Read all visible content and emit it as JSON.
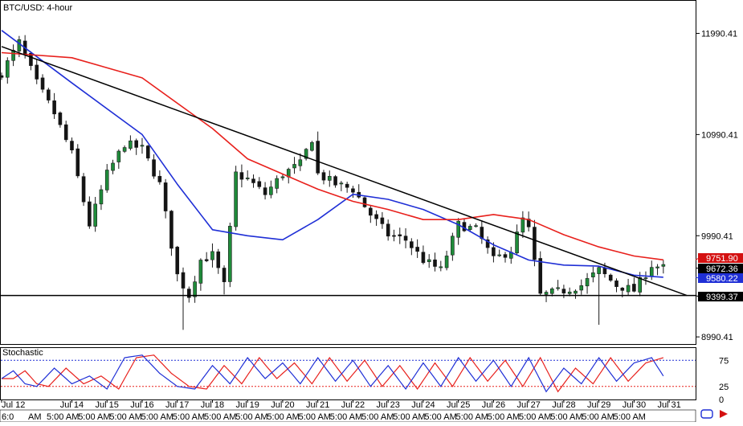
{
  "title": "BTC/USD: 4-hour",
  "colors": {
    "up": "#1f8b3a",
    "down": "#141414",
    "ma_fast": "#1f2fd6",
    "ma_slow": "#e8201c",
    "trendline": "#000000",
    "support": "#000000",
    "stoch_k": "#1f2fd6",
    "stoch_d": "#e8201c",
    "price_tag_red": "#d41010",
    "price_tag_blue": "#1f2fd6",
    "price_tag_black": "#000000"
  },
  "stochastic": {
    "title": "Stochastic",
    "levels": [
      "75",
      "25",
      "0"
    ]
  },
  "bottom_times": [
    "6:0",
    "AM",
    "5:00 AM",
    "5:00 AM",
    "5:00 AM",
    "5:00 AM",
    "5:00 AM",
    "5:00 AM",
    "5:00 AM",
    "5:00 AM",
    "5:00 AM",
    "5:00 AM",
    "5:00 AM",
    "5:00 AM",
    "5:00 AM",
    "5:00 AM",
    "5:00 AM",
    "5:00 AM",
    "5:00 AM",
    "5:00 AM",
    "5:00 AM"
  ],
  "chart_data": {
    "type": "candlestick",
    "title": "BTC/USD: 4-hour",
    "x_labels": [
      "Jul 12",
      "Jul 14",
      "Jul 15",
      "Jul 16",
      "Jul 17",
      "Jul 18",
      "Jul 19",
      "Jul 20",
      "Jul 21",
      "Jul 22",
      "Jul 23",
      "Jul 24",
      "Jul 25",
      "Jul 26",
      "Jul 27",
      "Jul 28",
      "Jul 29",
      "Jul 30",
      "Jul 31"
    ],
    "y_ticks": [
      "11990.41",
      "10990.41",
      "9990.41",
      "8990.41"
    ],
    "ylim": [
      8920,
      12320
    ],
    "close_keypoints": [
      {
        "t": "Jul 12",
        "v": 11600
      },
      {
        "t": "Jul 12 12:00",
        "v": 11900
      },
      {
        "t": "Jul 13",
        "v": 11500
      },
      {
        "t": "Jul 13 12:00",
        "v": 11200
      },
      {
        "t": "Jul 14",
        "v": 10800
      },
      {
        "t": "Jul 14 12:00",
        "v": 10100
      },
      {
        "t": "Jul 15",
        "v": 10600
      },
      {
        "t": "Jul 15 12:00",
        "v": 10900
      },
      {
        "t": "Jul 16",
        "v": 10850
      },
      {
        "t": "Jul 16 12:00",
        "v": 10500
      },
      {
        "t": "Jul 17",
        "v": 9600
      },
      {
        "t": "Jul 17 08:00",
        "v": 9400
      },
      {
        "t": "Jul 17 16:00",
        "v": 9750
      },
      {
        "t": "Jul 18",
        "v": 9800
      },
      {
        "t": "Jul 18 08:00",
        "v": 9500
      },
      {
        "t": "Jul 18 16:00",
        "v": 10600
      },
      {
        "t": "Jul 19",
        "v": 10550
      },
      {
        "t": "Jul 19 12:00",
        "v": 10400
      },
      {
        "t": "Jul 20",
        "v": 10600
      },
      {
        "t": "Jul 20 12:00",
        "v": 10700
      },
      {
        "t": "Jul 20 20:00",
        "v": 10950
      },
      {
        "t": "Jul 21",
        "v": 10600
      },
      {
        "t": "Jul 21 12:00",
        "v": 10500
      },
      {
        "t": "Jul 22",
        "v": 10450
      },
      {
        "t": "Jul 22 12:00",
        "v": 10200
      },
      {
        "t": "Jul 23",
        "v": 10000
      },
      {
        "t": "Jul 23 12:00",
        "v": 9950
      },
      {
        "t": "Jul 24",
        "v": 9750
      },
      {
        "t": "Jul 24 12:00",
        "v": 9650
      },
      {
        "t": "Jul 25",
        "v": 10100
      },
      {
        "t": "Jul 25 12:00",
        "v": 10050
      },
      {
        "t": "Jul 26",
        "v": 9750
      },
      {
        "t": "Jul 26 12:00",
        "v": 9850
      },
      {
        "t": "Jul 26 20:00",
        "v": 10150
      },
      {
        "t": "Jul 27",
        "v": 10050
      },
      {
        "t": "Jul 27 08:00",
        "v": 9400
      },
      {
        "t": "Jul 28",
        "v": 9450
      },
      {
        "t": "Jul 28 12:00",
        "v": 9500
      },
      {
        "t": "Jul 29",
        "v": 9650
      },
      {
        "t": "Jul 29 12:00",
        "v": 9500
      },
      {
        "t": "Jul 30",
        "v": 9450
      },
      {
        "t": "Jul 30 12:00",
        "v": 9700
      },
      {
        "t": "Jul 30 20:00",
        "v": 9672.36
      }
    ],
    "wick_extremes": [
      {
        "t": "Jul 17 04:00",
        "low": 9060
      },
      {
        "t": "Jul 18 08:00",
        "low": 9410
      },
      {
        "t": "Jul 21",
        "high": 11020
      },
      {
        "t": "Jul 29",
        "low": 9110
      }
    ],
    "series": [
      {
        "name": "",
        "type": "moving_average",
        "points": [
          {
            "t": "Jul 12",
            "v": 12020
          },
          {
            "t": "Jul 14",
            "v": 11500
          },
          {
            "t": "Jul 16",
            "v": 10990
          },
          {
            "t": "Jul 17",
            "v": 10500
          },
          {
            "t": "Jul 18",
            "v": 10050
          },
          {
            "t": "Jul 19",
            "v": 9990
          },
          {
            "t": "Jul 20",
            "v": 9950
          },
          {
            "t": "Jul 21",
            "v": 10150
          },
          {
            "t": "Jul 22",
            "v": 10400
          },
          {
            "t": "Jul 23",
            "v": 10350
          },
          {
            "t": "Jul 24",
            "v": 10250
          },
          {
            "t": "Jul 25",
            "v": 10100
          },
          {
            "t": "Jul 26",
            "v": 9900
          },
          {
            "t": "Jul 27",
            "v": 9750
          },
          {
            "t": "Jul 28",
            "v": 9700
          },
          {
            "t": "Jul 29",
            "v": 9690
          },
          {
            "t": "Jul 30",
            "v": 9600
          },
          {
            "t": "Jul 30 20:00",
            "v": 9580.22
          }
        ]
      },
      {
        "name": "",
        "type": "moving_average",
        "points": [
          {
            "t": "Jul 12",
            "v": 11800
          },
          {
            "t": "Jul 14",
            "v": 11750
          },
          {
            "t": "Jul 16",
            "v": 11550
          },
          {
            "t": "Jul 18",
            "v": 11050
          },
          {
            "t": "Jul 19",
            "v": 10750
          },
          {
            "t": "Jul 20",
            "v": 10600
          },
          {
            "t": "Jul 21",
            "v": 10450
          },
          {
            "t": "Jul 22",
            "v": 10330
          },
          {
            "t": "Jul 23",
            "v": 10250
          },
          {
            "t": "Jul 24",
            "v": 10150
          },
          {
            "t": "Jul 25",
            "v": 10150
          },
          {
            "t": "Jul 26",
            "v": 10200
          },
          {
            "t": "Jul 27",
            "v": 10150
          },
          {
            "t": "Jul 28",
            "v": 10000
          },
          {
            "t": "Jul 29",
            "v": 9880
          },
          {
            "t": "Jul 30",
            "v": 9790
          },
          {
            "t": "Jul 30 20:00",
            "v": 9751.9
          }
        ]
      }
    ],
    "annotations": [
      {
        "type": "trendline",
        "from": {
          "t": "Jul 12",
          "v": 11860
        },
        "to": {
          "t": "Jul 31 12:00",
          "v": 9400
        }
      },
      {
        "type": "horizontal_line",
        "v": 9399.37
      }
    ],
    "price_labels": [
      {
        "text": "9751.90",
        "value": 9751.9,
        "color": "red"
      },
      {
        "text": "9672.36",
        "value": 9672.36,
        "color": "black"
      },
      {
        "text": "9580.22",
        "value": 9580.22,
        "color": "blue"
      },
      {
        "text": "9399.37",
        "value": 9399.37,
        "color": "black"
      }
    ],
    "stochastic": {
      "k_keypoints": [
        {
          "t": "Jul 12",
          "v": 40
        },
        {
          "t": "Jul 12 08:00",
          "v": 55
        },
        {
          "t": "Jul 12 16:00",
          "v": 30
        },
        {
          "t": "Jul 13",
          "v": 25
        },
        {
          "t": "Jul 13 12:00",
          "v": 60
        },
        {
          "t": "Jul 14",
          "v": 30
        },
        {
          "t": "Jul 14 12:00",
          "v": 45
        },
        {
          "t": "Jul 15",
          "v": 20
        },
        {
          "t": "Jul 15 12:00",
          "v": 80
        },
        {
          "t": "Jul 16",
          "v": 85
        },
        {
          "t": "Jul 16 12:00",
          "v": 50
        },
        {
          "t": "Jul 17",
          "v": 25
        },
        {
          "t": "Jul 17 12:00",
          "v": 20
        },
        {
          "t": "Jul 18",
          "v": 65
        },
        {
          "t": "Jul 18 12:00",
          "v": 30
        },
        {
          "t": "Jul 19",
          "v": 80
        },
        {
          "t": "Jul 19 12:00",
          "v": 40
        },
        {
          "t": "Jul 20",
          "v": 70
        },
        {
          "t": "Jul 20 12:00",
          "v": 30
        },
        {
          "t": "Jul 21",
          "v": 80
        },
        {
          "t": "Jul 21 12:00",
          "v": 35
        },
        {
          "t": "Jul 22",
          "v": 75
        },
        {
          "t": "Jul 22 12:00",
          "v": 25
        },
        {
          "t": "Jul 23",
          "v": 65
        },
        {
          "t": "Jul 23 12:00",
          "v": 20
        },
        {
          "t": "Jul 24",
          "v": 70
        },
        {
          "t": "Jul 24 12:00",
          "v": 25
        },
        {
          "t": "Jul 25",
          "v": 80
        },
        {
          "t": "Jul 25 12:00",
          "v": 35
        },
        {
          "t": "Jul 26",
          "v": 75
        },
        {
          "t": "Jul 26 12:00",
          "v": 25
        },
        {
          "t": "Jul 27",
          "v": 80
        },
        {
          "t": "Jul 27 12:00",
          "v": 15
        },
        {
          "t": "Jul 28",
          "v": 60
        },
        {
          "t": "Jul 28 12:00",
          "v": 30
        },
        {
          "t": "Jul 29",
          "v": 80
        },
        {
          "t": "Jul 29 12:00",
          "v": 35
        },
        {
          "t": "Jul 30",
          "v": 70
        },
        {
          "t": "Jul 30 12:00",
          "v": 80
        },
        {
          "t": "Jul 30 20:00",
          "v": 45
        }
      ],
      "d_lag_hours": 8,
      "ylim": [
        0,
        100
      ],
      "levels": [
        75,
        25
      ]
    }
  }
}
